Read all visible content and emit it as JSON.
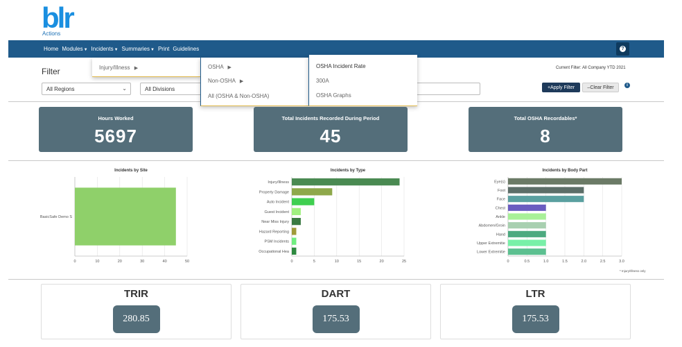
{
  "app": {
    "logo_text": "blr",
    "logo_sub": "Actions",
    "brand_color": "#1a8fe0"
  },
  "nav": {
    "items": [
      {
        "label": "Home",
        "has_caret": false
      },
      {
        "label": "Modules",
        "has_caret": true
      },
      {
        "label": "Incidents",
        "has_caret": true
      },
      {
        "label": "Summaries",
        "has_caret": true
      },
      {
        "label": "Print",
        "has_caret": false
      },
      {
        "label": "Guidelines",
        "has_caret": false
      }
    ],
    "help_icon": "question-circle-icon",
    "bg_color": "#1f5a8a"
  },
  "menus": {
    "level1": [
      {
        "label": "Injury/Illness",
        "arrow": "▶"
      }
    ],
    "level2": [
      {
        "label": "OSHA",
        "arrow": "▶"
      },
      {
        "label": "Non-OSHA",
        "arrow": "▶"
      },
      {
        "label": "All (OSHA & Non-OSHA)",
        "arrow": ""
      }
    ],
    "level3": [
      {
        "label": "OSHA Incident Rate"
      },
      {
        "label": "300A"
      },
      {
        "label": "OSHA Graphs"
      }
    ]
  },
  "filter": {
    "title": "Filter",
    "current_filter": "Current Filter: All Company YTD 2021",
    "regions_value": "All Regions",
    "divisions_value": "All Divisions",
    "apply_label": "Apply Filter",
    "clear_label": "Clear Filter",
    "info_icon": "info-circle-icon"
  },
  "stats": [
    {
      "label": "Hours Worked",
      "value": "5697"
    },
    {
      "label": "Total Incidents Recorded During Period",
      "value": "45"
    },
    {
      "label": "Total OSHA Recordables*",
      "value": "8"
    }
  ],
  "chart_data": [
    {
      "type": "bar",
      "orientation": "horizontal",
      "title": "Incidents by Site",
      "categories": [
        "BasicSafe Demo S"
      ],
      "values": [
        45
      ],
      "xlim": [
        0,
        50
      ],
      "xticks": [
        0,
        10,
        20,
        30,
        40,
        50
      ],
      "colors": [
        "#8fd06a"
      ],
      "grid": true
    },
    {
      "type": "bar",
      "orientation": "horizontal",
      "title": "Incidents by Type",
      "categories": [
        "Injury/Illness",
        "Property Damage",
        "Auto Incident",
        "Guest Incident",
        "Near Miss Injury",
        "Hazard Reporting",
        "PSM Incidents",
        "Occupational Hea"
      ],
      "values": [
        24,
        9,
        5,
        2,
        2,
        1,
        1,
        1
      ],
      "xlim": [
        0,
        25
      ],
      "xticks": [
        0,
        5,
        10,
        15,
        20,
        25
      ],
      "colors": [
        "#4a8a52",
        "#8ea84a",
        "#3fcf50",
        "#a0f080",
        "#3a7a42",
        "#a09a3a",
        "#70ee80",
        "#2e8a40"
      ],
      "grid": true
    },
    {
      "type": "bar",
      "orientation": "horizontal",
      "title": "Incidents by Body Part",
      "categories": [
        "Eye(s)",
        "Foot",
        "Face",
        "Chest",
        "Ankle",
        "Abdomen/Groin",
        "Hand",
        "Upper Extremitie",
        "Lower Extremitie"
      ],
      "values": [
        3,
        2,
        2,
        1,
        1,
        1,
        1,
        1,
        1
      ],
      "xlim": [
        0,
        3
      ],
      "xticks": [
        "0",
        "0.5",
        "1.0",
        "1.5",
        "2.0",
        "2.5",
        "3.0"
      ],
      "colors": [
        "#6b7a66",
        "#5c6e68",
        "#5aa0a0",
        "#6a5cc0",
        "#a8f098",
        "#a8d0b0",
        "#4caa80",
        "#78f0a8",
        "#5cc090"
      ],
      "grid": true
    }
  ],
  "footnote": "* Injury/Illness only",
  "rates": [
    {
      "label": "TRIR",
      "value": "280.85"
    },
    {
      "label": "DART",
      "value": "175.53"
    },
    {
      "label": "LTR",
      "value": "175.53"
    }
  ]
}
